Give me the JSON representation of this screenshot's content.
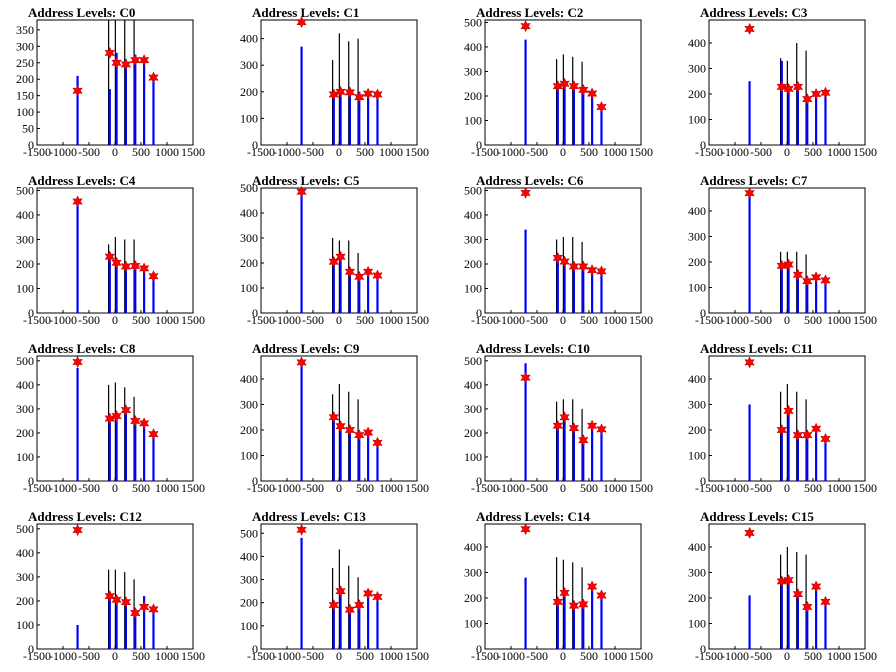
{
  "chart_data": [
    {
      "type": "bar",
      "title": "Address Levels: C0",
      "xlim": [
        -1500,
        1500
      ],
      "ylim": [
        0,
        380
      ],
      "yticks": [
        0,
        50,
        100,
        150,
        200,
        250,
        300,
        350
      ],
      "xticks": [
        "-1500",
        "-1000",
        "-500",
        "0",
        "500",
        "1000",
        "1500"
      ],
      "peaks_x": [
        -720,
        -100,
        30,
        210,
        390,
        560,
        740
      ],
      "peak_values": [
        165,
        280,
        250,
        245,
        258,
        258,
        205
      ],
      "black_heights": [
        0,
        380,
        380,
        380,
        380,
        0,
        0
      ],
      "blue_heights": [
        210,
        170,
        280,
        260,
        275,
        260,
        210
      ]
    },
    {
      "type": "bar",
      "title": "Address Levels: C1",
      "xlim": [
        -1500,
        1500
      ],
      "ylim": [
        0,
        470
      ],
      "yticks": [
        0,
        100,
        200,
        300,
        400
      ],
      "xticks": [
        "-1500",
        "-1000",
        "-500",
        "0",
        "500",
        "1000",
        "1500"
      ],
      "peaks_x": [
        -720,
        -100,
        30,
        210,
        390,
        560,
        740
      ],
      "peak_values": [
        462,
        190,
        200,
        198,
        180,
        193,
        190
      ],
      "black_heights": [
        0,
        320,
        420,
        390,
        400,
        0,
        0
      ],
      "blue_heights": [
        370,
        190,
        210,
        210,
        200,
        200,
        200
      ]
    },
    {
      "type": "bar",
      "title": "Address Levels: C2",
      "xlim": [
        -1500,
        1500
      ],
      "ylim": [
        0,
        510
      ],
      "yticks": [
        0,
        100,
        200,
        300,
        400,
        500
      ],
      "xticks": [
        "-1500",
        "-1000",
        "-500",
        "0",
        "500",
        "1000",
        "1500"
      ],
      "peaks_x": [
        -720,
        -100,
        30,
        210,
        390,
        560,
        740
      ],
      "peak_values": [
        485,
        240,
        250,
        240,
        225,
        210,
        155
      ],
      "black_heights": [
        0,
        350,
        370,
        360,
        340,
        0,
        0
      ],
      "blue_heights": [
        430,
        240,
        255,
        245,
        230,
        215,
        160
      ]
    },
    {
      "type": "bar",
      "title": "Address Levels: C3",
      "xlim": [
        -1500,
        1500
      ],
      "ylim": [
        0,
        490
      ],
      "yticks": [
        0,
        100,
        200,
        300,
        400
      ],
      "xticks": [
        "-1500",
        "-1000",
        "-500",
        "0",
        "500",
        "1000",
        "1500"
      ],
      "peaks_x": [
        -720,
        -100,
        30,
        210,
        390,
        560,
        740
      ],
      "peak_values": [
        455,
        228,
        220,
        228,
        180,
        200,
        205
      ],
      "black_heights": [
        0,
        340,
        330,
        400,
        370,
        0,
        0
      ],
      "blue_heights": [
        250,
        330,
        230,
        230,
        185,
        205,
        205
      ]
    },
    {
      "type": "bar",
      "title": "Address Levels: C4",
      "xlim": [
        -1500,
        1500
      ],
      "ylim": [
        0,
        510
      ],
      "yticks": [
        0,
        100,
        200,
        300,
        400,
        500
      ],
      "xticks": [
        "-1500",
        "-1000",
        "-500",
        "0",
        "500",
        "1000",
        "1500"
      ],
      "peaks_x": [
        -720,
        -100,
        30,
        210,
        390,
        560,
        740
      ],
      "peak_values": [
        455,
        230,
        205,
        190,
        192,
        182,
        150
      ],
      "black_heights": [
        0,
        280,
        310,
        300,
        300,
        0,
        0
      ],
      "blue_heights": [
        470,
        230,
        205,
        195,
        195,
        185,
        150
      ]
    },
    {
      "type": "bar",
      "title": "Address Levels: C5",
      "xlim": [
        -1500,
        1500
      ],
      "ylim": [
        0,
        500
      ],
      "yticks": [
        0,
        100,
        200,
        300,
        400,
        500
      ],
      "xticks": [
        "-1500",
        "-1000",
        "-500",
        "0",
        "500",
        "1000",
        "1500"
      ],
      "peaks_x": [
        -720,
        -100,
        30,
        210,
        390,
        560,
        740
      ],
      "peak_values": [
        485,
        205,
        225,
        165,
        145,
        165,
        150
      ],
      "black_heights": [
        0,
        300,
        290,
        290,
        240,
        0,
        0
      ],
      "blue_heights": [
        490,
        205,
        225,
        165,
        150,
        165,
        150
      ]
    },
    {
      "type": "bar",
      "title": "Address Levels: C6",
      "xlim": [
        -1500,
        1500
      ],
      "ylim": [
        0,
        510
      ],
      "yticks": [
        0,
        100,
        200,
        300,
        400,
        500
      ],
      "xticks": [
        "-1500",
        "-1000",
        "-500",
        "0",
        "500",
        "1000",
        "1500"
      ],
      "peaks_x": [
        -720,
        -100,
        30,
        210,
        390,
        560,
        740
      ],
      "peak_values": [
        490,
        225,
        210,
        190,
        190,
        175,
        170
      ],
      "black_heights": [
        0,
        300,
        310,
        310,
        290,
        0,
        0
      ],
      "blue_heights": [
        340,
        225,
        215,
        195,
        195,
        180,
        175
      ]
    },
    {
      "type": "bar",
      "title": "Address Levels: C7",
      "xlim": [
        -1500,
        1500
      ],
      "ylim": [
        0,
        490
      ],
      "yticks": [
        0,
        100,
        200,
        300,
        400
      ],
      "xticks": [
        "-1500",
        "-1000",
        "-500",
        "0",
        "500",
        "1000",
        "1500"
      ],
      "peaks_x": [
        -720,
        -100,
        30,
        210,
        390,
        560,
        740
      ],
      "peak_values": [
        470,
        185,
        190,
        150,
        125,
        140,
        128
      ],
      "black_heights": [
        0,
        240,
        240,
        240,
        230,
        0,
        0
      ],
      "blue_heights": [
        475,
        185,
        195,
        150,
        130,
        145,
        130
      ]
    },
    {
      "type": "bar",
      "title": "Address Levels: C8",
      "xlim": [
        -1500,
        1500
      ],
      "ylim": [
        0,
        520
      ],
      "yticks": [
        0,
        100,
        200,
        300,
        400,
        500
      ],
      "xticks": [
        "-1500",
        "-1000",
        "-500",
        "0",
        "500",
        "1000",
        "1500"
      ],
      "peaks_x": [
        -720,
        -100,
        30,
        210,
        390,
        560,
        740
      ],
      "peak_values": [
        495,
        260,
        270,
        295,
        250,
        240,
        195
      ],
      "black_heights": [
        0,
        400,
        410,
        390,
        350,
        0,
        0
      ],
      "blue_heights": [
        470,
        260,
        275,
        300,
        255,
        240,
        200
      ]
    },
    {
      "type": "bar",
      "title": "Address Levels: C9",
      "xlim": [
        -1500,
        1500
      ],
      "ylim": [
        0,
        490
      ],
      "yticks": [
        0,
        100,
        200,
        300,
        400
      ],
      "xticks": [
        "-1500",
        "-1000",
        "-500",
        "0",
        "500",
        "1000",
        "1500"
      ],
      "peaks_x": [
        -720,
        -100,
        30,
        210,
        390,
        560,
        740
      ],
      "peak_values": [
        465,
        250,
        215,
        200,
        180,
        190,
        150
      ],
      "black_heights": [
        0,
        340,
        380,
        350,
        320,
        0,
        0
      ],
      "blue_heights": [
        470,
        250,
        220,
        205,
        185,
        195,
        155
      ]
    },
    {
      "type": "bar",
      "title": "Address Levels: C10",
      "xlim": [
        -1500,
        1500
      ],
      "ylim": [
        0,
        520
      ],
      "yticks": [
        0,
        100,
        200,
        300,
        400,
        500
      ],
      "xticks": [
        "-1500",
        "-1000",
        "-500",
        "0",
        "500",
        "1000",
        "1500"
      ],
      "peaks_x": [
        -720,
        -100,
        30,
        210,
        390,
        560,
        740
      ],
      "peak_values": [
        430,
        230,
        265,
        220,
        170,
        230,
        215
      ],
      "black_heights": [
        0,
        330,
        340,
        340,
        300,
        0,
        0
      ],
      "blue_heights": [
        490,
        230,
        270,
        225,
        175,
        235,
        220
      ]
    },
    {
      "type": "bar",
      "title": "Address Levels: C11",
      "xlim": [
        -1500,
        1500
      ],
      "ylim": [
        0,
        490
      ],
      "yticks": [
        0,
        100,
        200,
        300,
        400
      ],
      "xticks": [
        "-1500",
        "-1000",
        "-500",
        "0",
        "500",
        "1000",
        "1500"
      ],
      "peaks_x": [
        -720,
        -100,
        30,
        210,
        390,
        560,
        740
      ],
      "peak_values": [
        465,
        200,
        275,
        180,
        180,
        205,
        165
      ],
      "black_heights": [
        0,
        350,
        380,
        350,
        320,
        0,
        0
      ],
      "blue_heights": [
        300,
        200,
        280,
        185,
        185,
        210,
        170
      ]
    },
    {
      "type": "bar",
      "title": "Address Levels: C12",
      "xlim": [
        -1500,
        1500
      ],
      "ylim": [
        0,
        520
      ],
      "yticks": [
        0,
        100,
        200,
        300,
        400,
        500
      ],
      "xticks": [
        "-1500",
        "-1000",
        "-500",
        "0",
        "500",
        "1000",
        "1500"
      ],
      "peaks_x": [
        -720,
        -100,
        30,
        210,
        390,
        560,
        740
      ],
      "peak_values": [
        495,
        220,
        205,
        195,
        150,
        175,
        165
      ],
      "black_heights": [
        0,
        330,
        330,
        320,
        290,
        0,
        0
      ],
      "blue_heights": [
        100,
        225,
        210,
        200,
        155,
        220,
        170
      ]
    },
    {
      "type": "bar",
      "title": "Address Levels: C13",
      "xlim": [
        -1500,
        1500
      ],
      "ylim": [
        0,
        540
      ],
      "yticks": [
        0,
        100,
        200,
        300,
        400,
        500
      ],
      "xticks": [
        "-1500",
        "-1000",
        "-500",
        "0",
        "500",
        "1000",
        "1500"
      ],
      "peaks_x": [
        -720,
        -100,
        30,
        210,
        390,
        560,
        740
      ],
      "peak_values": [
        515,
        190,
        250,
        170,
        190,
        240,
        225
      ],
      "black_heights": [
        0,
        350,
        430,
        360,
        310,
        0,
        0
      ],
      "blue_heights": [
        480,
        195,
        255,
        175,
        195,
        245,
        225
      ]
    },
    {
      "type": "bar",
      "title": "Address Levels: C14",
      "xlim": [
        -1500,
        1500
      ],
      "ylim": [
        0,
        490
      ],
      "yticks": [
        0,
        100,
        200,
        300,
        400
      ],
      "xticks": [
        "-1500",
        "-1000",
        "-500",
        "0",
        "500",
        "1000",
        "1500"
      ],
      "peaks_x": [
        -720,
        -100,
        30,
        210,
        390,
        560,
        740
      ],
      "peak_values": [
        470,
        185,
        220,
        170,
        175,
        245,
        210
      ],
      "black_heights": [
        0,
        360,
        350,
        340,
        320,
        0,
        0
      ],
      "blue_heights": [
        280,
        185,
        225,
        175,
        180,
        250,
        215
      ]
    },
    {
      "type": "bar",
      "title": "Address Levels: C15",
      "xlim": [
        -1500,
        1500
      ],
      "ylim": [
        0,
        490
      ],
      "yticks": [
        0,
        100,
        200,
        300,
        400
      ],
      "xticks": [
        "-1500",
        "-1000",
        "-500",
        "0",
        "500",
        "1000",
        "1500"
      ],
      "peaks_x": [
        -720,
        -100,
        30,
        210,
        390,
        560,
        740
      ],
      "peak_values": [
        455,
        265,
        270,
        215,
        165,
        245,
        185
      ],
      "black_heights": [
        0,
        370,
        400,
        380,
        370,
        0,
        0
      ],
      "blue_heights": [
        210,
        265,
        275,
        220,
        170,
        250,
        190
      ]
    }
  ]
}
